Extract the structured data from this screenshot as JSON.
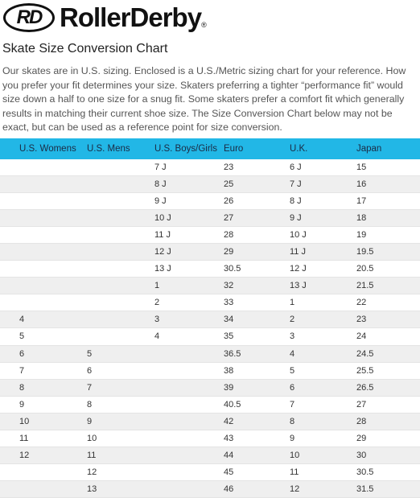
{
  "logo": {
    "mark": "RD",
    "wordmark": "RollerDerby",
    "registered": "®"
  },
  "title": "Skate Size Conversion Chart",
  "intro": "Our skates are in U.S. sizing. Enclosed is a U.S./Metric sizing chart for your reference. How you prefer your fit determines your size. Skaters preferring a tighter “performance fit” would size down a half to one size for a snug fit. Some skaters prefer a comfort fit which generally results in matching their current shoe size. The Size Conversion Chart below may not be exact, but can be used as a reference point for size conversion.",
  "table": {
    "columns": [
      "U.S. Womens",
      "U.S. Mens",
      "U.S. Boys/Girls",
      "Euro",
      "U.K.",
      "Japan"
    ],
    "rows": [
      [
        null,
        null,
        "7 J",
        "23",
        "6 J",
        "15"
      ],
      [
        null,
        null,
        "8 J",
        "25",
        "7 J",
        "16"
      ],
      [
        null,
        null,
        "9 J",
        "26",
        "8 J",
        "17"
      ],
      [
        null,
        null,
        "10 J",
        "27",
        "9 J",
        "18"
      ],
      [
        null,
        null,
        "11 J",
        "28",
        "10 J",
        "19"
      ],
      [
        null,
        null,
        "12 J",
        "29",
        "11 J",
        "19.5"
      ],
      [
        null,
        null,
        "13 J",
        "30.5",
        "12 J",
        "20.5"
      ],
      [
        null,
        null,
        "1",
        "32",
        "13 J",
        "21.5"
      ],
      [
        null,
        null,
        "2",
        "33",
        "1",
        "22"
      ],
      [
        "4",
        null,
        "3",
        "34",
        "2",
        "23"
      ],
      [
        "5",
        null,
        "4",
        "35",
        "3",
        "24"
      ],
      [
        "6",
        "5",
        null,
        "36.5",
        "4",
        "24.5"
      ],
      [
        "7",
        "6",
        null,
        "38",
        "5",
        "25.5"
      ],
      [
        "8",
        "7",
        null,
        "39",
        "6",
        "26.5"
      ],
      [
        "9",
        "8",
        null,
        "40.5",
        "7",
        "27"
      ],
      [
        "10",
        "9",
        null,
        "42",
        "8",
        "28"
      ],
      [
        "11",
        "10",
        null,
        "43",
        "9",
        "29"
      ],
      [
        "12",
        "11",
        null,
        "44",
        "10",
        "30"
      ],
      [
        null,
        "12",
        null,
        "45",
        "11",
        "30.5"
      ],
      [
        null,
        "13",
        null,
        "46",
        "12",
        "31.5"
      ]
    ]
  }
}
